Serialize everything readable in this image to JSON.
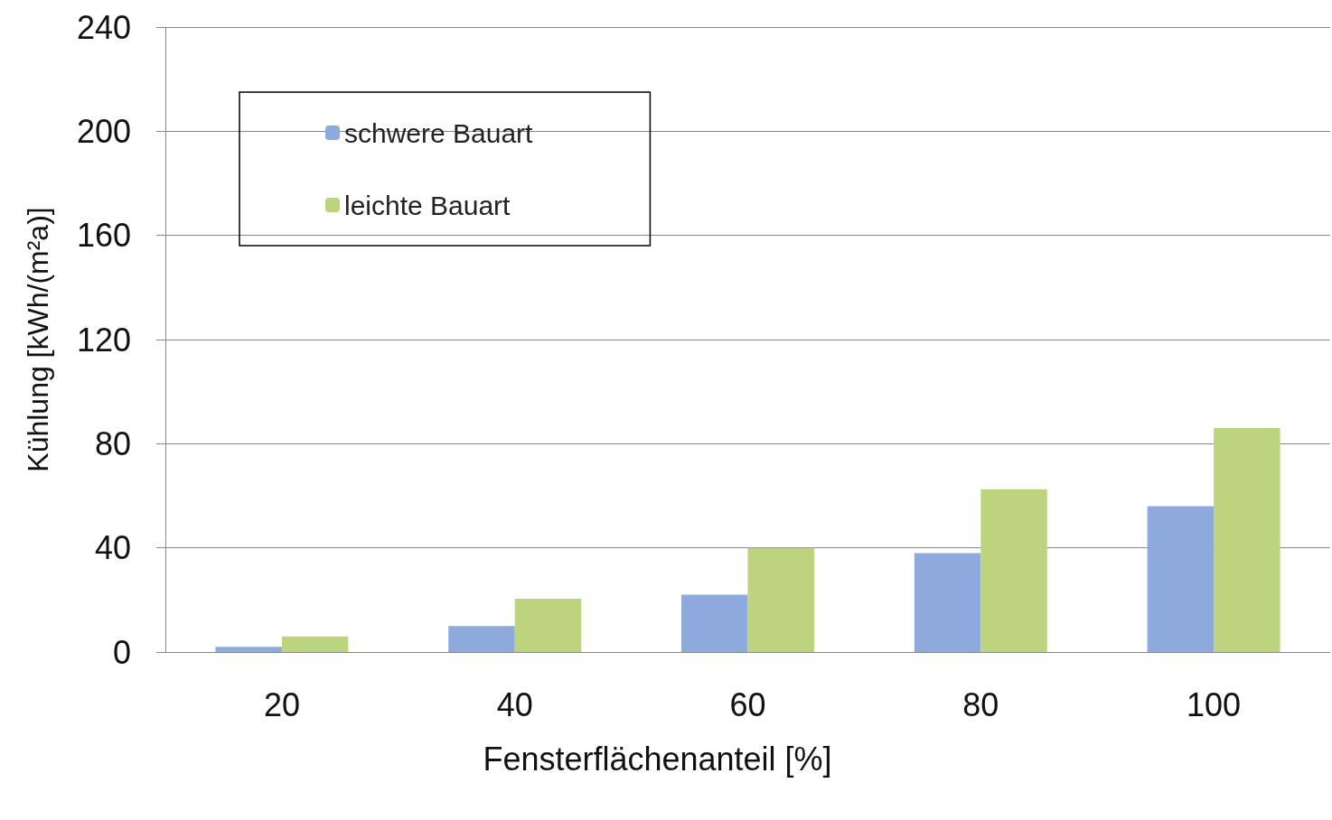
{
  "chart_data": {
    "type": "bar",
    "xlabel": "Fensterflächenanteil [%]",
    "ylabel": "Kühlung [kWh/(m²a)]",
    "categories": [
      "20",
      "40",
      "60",
      "80",
      "100"
    ],
    "series": [
      {
        "name": "schwere Bauart",
        "color": "#8eaadc",
        "values": [
          2,
          10,
          22,
          38,
          56
        ]
      },
      {
        "name": "leichte Bauart",
        "color": "#bcd47e",
        "values": [
          6,
          20.5,
          40,
          62.5,
          86
        ]
      }
    ],
    "ylim": [
      0,
      240
    ],
    "yticks": [
      0,
      40,
      80,
      120,
      160,
      200,
      240
    ],
    "grid": "y",
    "legend": "top left"
  }
}
